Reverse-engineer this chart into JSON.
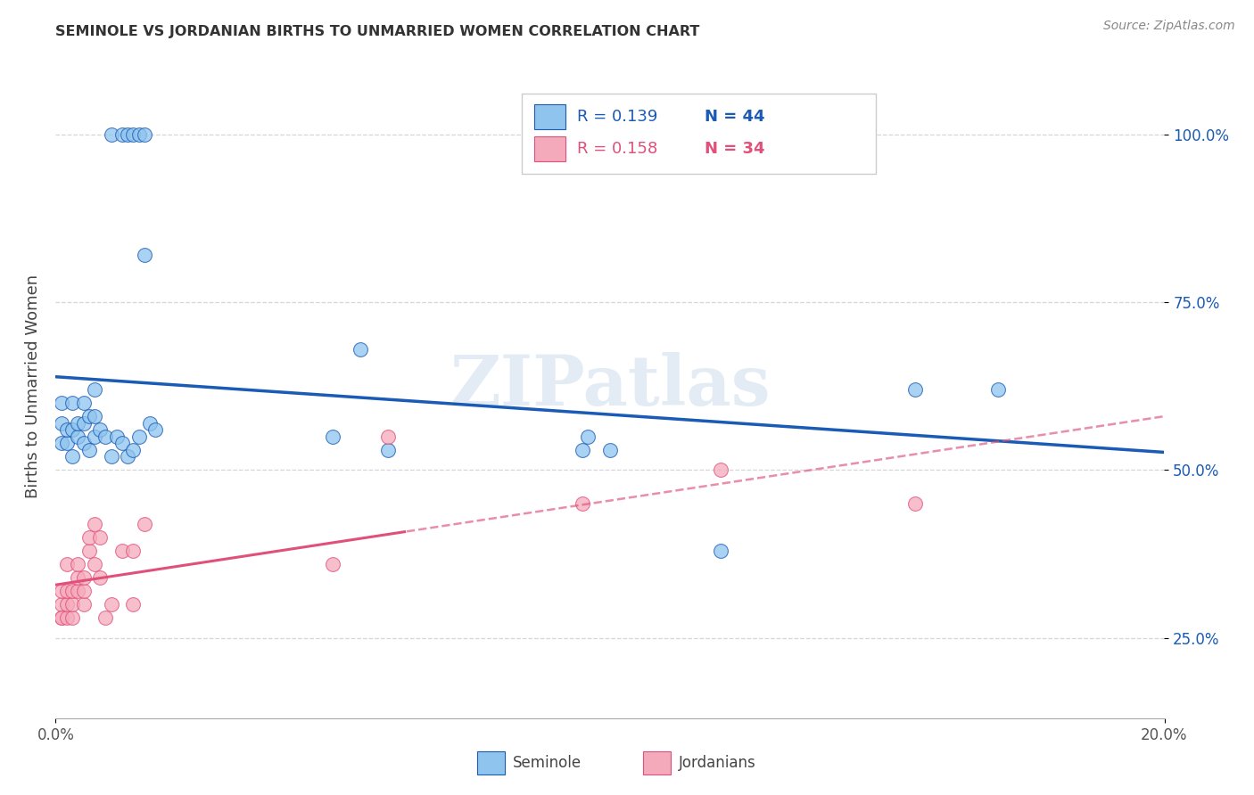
{
  "title": "SEMINOLE VS JORDANIAN BIRTHS TO UNMARRIED WOMEN CORRELATION CHART",
  "source": "Source: ZipAtlas.com",
  "ylabel": "Births to Unmarried Women",
  "legend_blue_r": "R = 0.139",
  "legend_blue_n": "N = 44",
  "legend_pink_r": "R = 0.158",
  "legend_pink_n": "N = 34",
  "seminole_color": "#8EC4EE",
  "jordanian_color": "#F5AABB",
  "trend_blue": "#1A5BB5",
  "trend_pink": "#E0507A",
  "watermark": "ZIPatlas",
  "xlim": [
    0.0,
    0.2
  ],
  "ylim": [
    0.13,
    1.12
  ],
  "yticks": [
    0.25,
    0.5,
    0.75,
    1.0
  ],
  "ytick_labels": [
    "25.0%",
    "50.0%",
    "75.0%",
    "100.0%"
  ],
  "xtick_labels": [
    "0.0%",
    "20.0%"
  ],
  "blue_x": [
    0.001,
    0.001,
    0.001,
    0.002,
    0.002,
    0.003,
    0.003,
    0.003,
    0.004,
    0.004,
    0.005,
    0.005,
    0.005,
    0.006,
    0.006,
    0.007,
    0.007,
    0.007,
    0.008,
    0.009,
    0.01,
    0.011,
    0.012,
    0.013,
    0.014,
    0.015,
    0.017,
    0.018,
    0.05,
    0.055,
    0.06,
    0.095,
    0.096,
    0.1,
    0.12,
    0.155,
    0.17,
    0.01,
    0.012,
    0.013,
    0.014,
    0.015,
    0.016,
    0.016
  ],
  "blue_y": [
    0.6,
    0.57,
    0.54,
    0.54,
    0.56,
    0.52,
    0.56,
    0.6,
    0.55,
    0.57,
    0.54,
    0.57,
    0.6,
    0.53,
    0.58,
    0.55,
    0.58,
    0.62,
    0.56,
    0.55,
    0.52,
    0.55,
    0.54,
    0.52,
    0.53,
    0.55,
    0.57,
    0.56,
    0.55,
    0.68,
    0.53,
    0.53,
    0.55,
    0.53,
    0.38,
    0.62,
    0.62,
    1.0,
    1.0,
    1.0,
    1.0,
    1.0,
    1.0,
    0.82
  ],
  "pink_x": [
    0.001,
    0.001,
    0.001,
    0.001,
    0.002,
    0.002,
    0.002,
    0.002,
    0.003,
    0.003,
    0.003,
    0.004,
    0.004,
    0.004,
    0.005,
    0.005,
    0.005,
    0.006,
    0.006,
    0.007,
    0.007,
    0.008,
    0.008,
    0.009,
    0.01,
    0.012,
    0.014,
    0.014,
    0.016,
    0.05,
    0.06,
    0.095,
    0.12,
    0.155
  ],
  "pink_y": [
    0.28,
    0.3,
    0.28,
    0.32,
    0.28,
    0.3,
    0.32,
    0.36,
    0.28,
    0.3,
    0.32,
    0.32,
    0.34,
    0.36,
    0.3,
    0.32,
    0.34,
    0.38,
    0.4,
    0.36,
    0.42,
    0.34,
    0.4,
    0.28,
    0.3,
    0.38,
    0.3,
    0.38,
    0.42,
    0.36,
    0.55,
    0.45,
    0.5,
    0.45
  ]
}
